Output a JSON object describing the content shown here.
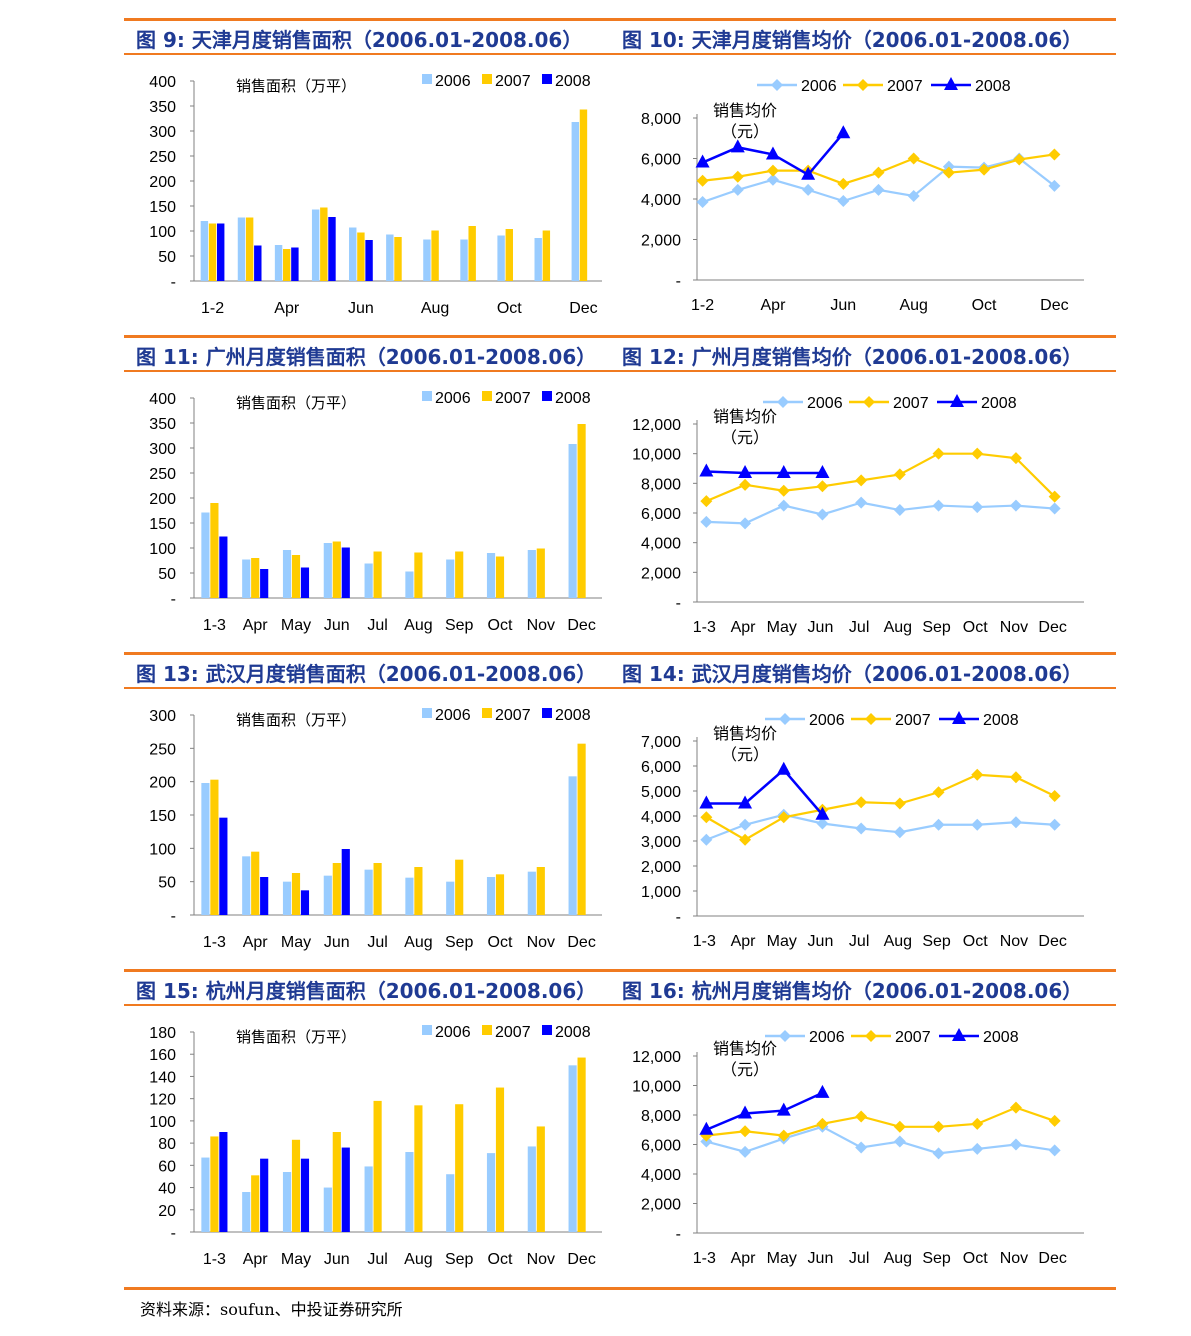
{
  "colors": {
    "y2006": "#99ccff",
    "y2007": "#ffcc00",
    "y2008": "#0000ff",
    "accent": "#f07a20",
    "title": "#1f3a93"
  },
  "sections": [
    {
      "left_title": "图  9:  天津月度销售面积（2006.01-2008.06）",
      "right_title": "图  10:  天津月度销售均价（2006.01-2008.06）"
    },
    {
      "left_title": "图  11:  广州月度销售面积（2006.01-2008.06）",
      "right_title": "图  12:  广州月度销售均价（2006.01-2008.06）"
    },
    {
      "left_title": "图  13:  武汉月度销售面积（2006.01-2008.06）",
      "right_title": "图  14:  武汉月度销售均价（2006.01-2008.06）"
    },
    {
      "left_title": "图  15:  杭州月度销售面积（2006.01-2008.06）",
      "right_title": "图  16:  杭州月度销售均价（2006.01-2008.06）"
    }
  ],
  "source": "资料来源：soufun、中投证券研究所",
  "chart_data": [
    {
      "id": "c9",
      "type": "bar",
      "title": "天津月度销售面积",
      "ylabel": "销售面积（万平）",
      "categories": [
        "1-2",
        "Mar",
        "Apr",
        "May",
        "Jun",
        "Jul",
        "Aug",
        "Sep",
        "Oct",
        "Nov",
        "Dec"
      ],
      "category_labels": [
        "1-2",
        "",
        "Apr",
        "",
        "Jun",
        "",
        "Aug",
        "",
        "Oct",
        "",
        "Dec"
      ],
      "ylim": [
        0,
        400
      ],
      "yticks": [
        {
          "v": 0,
          "t": "-"
        },
        {
          "v": 50,
          "t": "50"
        },
        {
          "v": 100,
          "t": "100"
        },
        {
          "v": 150,
          "t": "150"
        },
        {
          "v": 200,
          "t": "200"
        },
        {
          "v": 250,
          "t": "250"
        },
        {
          "v": 300,
          "t": "300"
        },
        {
          "v": 350,
          "t": "350"
        },
        {
          "v": 400,
          "t": "400"
        }
      ],
      "series": [
        {
          "name": "2006",
          "values": [
            120,
            127,
            72,
            143,
            107,
            93,
            83,
            83,
            91,
            86,
            318
          ]
        },
        {
          "name": "2007",
          "values": [
            115,
            127,
            64,
            147,
            97,
            88,
            101,
            110,
            104,
            101,
            343
          ]
        },
        {
          "name": "2008",
          "values": [
            115,
            71,
            67,
            128,
            82,
            null,
            null,
            null,
            null,
            null,
            null
          ]
        }
      ]
    },
    {
      "id": "c10",
      "type": "line",
      "title": "天津月度销售均价",
      "ylabel": "销售均价（元）",
      "categories": [
        "1-2",
        "Mar",
        "Apr",
        "May",
        "Jun",
        "Jul",
        "Aug",
        "Sep",
        "Oct",
        "Nov",
        "Dec"
      ],
      "category_labels": [
        "1-2",
        "",
        "Apr",
        "",
        "Jun",
        "",
        "Aug",
        "",
        "Oct",
        "",
        "Dec"
      ],
      "ylim": [
        0,
        8000
      ],
      "yticks": [
        {
          "v": 0,
          "t": "-"
        },
        {
          "v": 2000,
          "t": "2,000"
        },
        {
          "v": 4000,
          "t": "4,000"
        },
        {
          "v": 6000,
          "t": "6,000"
        },
        {
          "v": 8000,
          "t": "8,000"
        }
      ],
      "series": [
        {
          "name": "2006",
          "values": [
            3850,
            4450,
            4950,
            4450,
            3900,
            4450,
            4150,
            5600,
            5550,
            6000,
            4650
          ]
        },
        {
          "name": "2007",
          "values": [
            4900,
            5100,
            5400,
            5400,
            4750,
            5300,
            6000,
            5300,
            5450,
            5950,
            6200
          ]
        },
        {
          "name": "2008",
          "values": [
            5800,
            6550,
            6200,
            5200,
            7250,
            null,
            null,
            null,
            null,
            null,
            null
          ]
        }
      ]
    },
    {
      "id": "c11",
      "type": "bar",
      "title": "广州月度销售面积",
      "ylabel": "销售面积（万平）",
      "categories": [
        "1-3",
        "Apr",
        "May",
        "Jun",
        "Jul",
        "Aug",
        "Sep",
        "Oct",
        "Nov",
        "Dec"
      ],
      "category_labels": [
        "1-3",
        "Apr",
        "May",
        "Jun",
        "Jul",
        "Aug",
        "Sep",
        "Oct",
        "Nov",
        "Dec"
      ],
      "ylim": [
        0,
        400
      ],
      "yticks": [
        {
          "v": 0,
          "t": "-"
        },
        {
          "v": 50,
          "t": "50"
        },
        {
          "v": 100,
          "t": "100"
        },
        {
          "v": 150,
          "t": "150"
        },
        {
          "v": 200,
          "t": "200"
        },
        {
          "v": 250,
          "t": "250"
        },
        {
          "v": 300,
          "t": "300"
        },
        {
          "v": 350,
          "t": "350"
        },
        {
          "v": 400,
          "t": "400"
        }
      ],
      "series": [
        {
          "name": "2006",
          "values": [
            171,
            77,
            96,
            110,
            69,
            53,
            77,
            90,
            96,
            308
          ]
        },
        {
          "name": "2007",
          "values": [
            190,
            80,
            86,
            113,
            93,
            91,
            93,
            83,
            99,
            348
          ]
        },
        {
          "name": "2008",
          "values": [
            123,
            58,
            61,
            101,
            null,
            null,
            null,
            null,
            null,
            null
          ]
        }
      ]
    },
    {
      "id": "c12",
      "type": "line",
      "title": "广州月度销售均价",
      "ylabel": "销售均价（元）",
      "categories": [
        "1-3",
        "Apr",
        "May",
        "Jun",
        "Jul",
        "Aug",
        "Sep",
        "Oct",
        "Nov",
        "Dec"
      ],
      "category_labels": [
        "1-3",
        "Apr",
        "May",
        "Jun",
        "Jul",
        "Aug",
        "Sep",
        "Oct",
        "Nov",
        "Dec"
      ],
      "ylim": [
        0,
        12000
      ],
      "yticks": [
        {
          "v": 0,
          "t": "-"
        },
        {
          "v": 2000,
          "t": "2,000"
        },
        {
          "v": 4000,
          "t": "4,000"
        },
        {
          "v": 6000,
          "t": "6,000"
        },
        {
          "v": 8000,
          "t": "8,000"
        },
        {
          "v": 10000,
          "t": "10,000"
        },
        {
          "v": 12000,
          "t": "12,000"
        }
      ],
      "series": [
        {
          "name": "2006",
          "values": [
            5400,
            5300,
            6500,
            5900,
            6700,
            6200,
            6500,
            6400,
            6500,
            6300
          ]
        },
        {
          "name": "2007",
          "values": [
            6800,
            7900,
            7500,
            7800,
            8200,
            8600,
            10000,
            10000,
            9700,
            7100
          ]
        },
        {
          "name": "2008",
          "values": [
            8800,
            8700,
            8700,
            8700,
            null,
            null,
            null,
            null,
            null,
            null
          ]
        }
      ]
    },
    {
      "id": "c13",
      "type": "bar",
      "title": "武汉月度销售面积",
      "ylabel": "销售面积（万平）",
      "categories": [
        "1-3",
        "Apr",
        "May",
        "Jun",
        "Jul",
        "Aug",
        "Sep",
        "Oct",
        "Nov",
        "Dec"
      ],
      "category_labels": [
        "1-3",
        "Apr",
        "May",
        "Jun",
        "Jul",
        "Aug",
        "Sep",
        "Oct",
        "Nov",
        "Dec"
      ],
      "ylim": [
        0,
        300
      ],
      "yticks": [
        {
          "v": 0,
          "t": "-"
        },
        {
          "v": 50,
          "t": "50"
        },
        {
          "v": 100,
          "t": "100"
        },
        {
          "v": 150,
          "t": "150"
        },
        {
          "v": 200,
          "t": "200"
        },
        {
          "v": 250,
          "t": "250"
        },
        {
          "v": 300,
          "t": "300"
        }
      ],
      "series": [
        {
          "name": "2006",
          "values": [
            198,
            88,
            50,
            59,
            68,
            56,
            50,
            57,
            65,
            208
          ]
        },
        {
          "name": "2007",
          "values": [
            203,
            95,
            63,
            78,
            78,
            72,
            83,
            61,
            72,
            257
          ]
        },
        {
          "name": "2008",
          "values": [
            146,
            57,
            37,
            99,
            null,
            null,
            null,
            null,
            null,
            null
          ]
        }
      ]
    },
    {
      "id": "c14",
      "type": "line",
      "title": "武汉月度销售均价",
      "ylabel": "销售均价（元）",
      "categories": [
        "1-3",
        "Apr",
        "May",
        "Jun",
        "Jul",
        "Aug",
        "Sep",
        "Oct",
        "Nov",
        "Dec"
      ],
      "category_labels": [
        "1-3",
        "Apr",
        "May",
        "Jun",
        "Jul",
        "Aug",
        "Sep",
        "Oct",
        "Nov",
        "Dec"
      ],
      "ylim": [
        0,
        7000
      ],
      "yticks": [
        {
          "v": 0,
          "t": "-"
        },
        {
          "v": 1000,
          "t": "1,000"
        },
        {
          "v": 2000,
          "t": "2,000"
        },
        {
          "v": 3000,
          "t": "3,000"
        },
        {
          "v": 4000,
          "t": "4,000"
        },
        {
          "v": 5000,
          "t": "5,000"
        },
        {
          "v": 6000,
          "t": "6,000"
        },
        {
          "v": 7000,
          "t": "7,000"
        }
      ],
      "series": [
        {
          "name": "2006",
          "values": [
            3050,
            3650,
            4050,
            3700,
            3500,
            3350,
            3650,
            3650,
            3750,
            3650
          ]
        },
        {
          "name": "2007",
          "values": [
            3950,
            3050,
            3950,
            4250,
            4550,
            4500,
            4950,
            5650,
            5550,
            4800
          ]
        },
        {
          "name": "2008",
          "values": [
            4500,
            4500,
            5850,
            4050,
            null,
            null,
            null,
            null,
            null,
            null
          ]
        }
      ]
    },
    {
      "id": "c15",
      "type": "bar",
      "title": "杭州月度销售面积",
      "ylabel": "销售面积（万平）",
      "categories": [
        "1-3",
        "Apr",
        "May",
        "Jun",
        "Jul",
        "Aug",
        "Sep",
        "Oct",
        "Nov",
        "Dec"
      ],
      "category_labels": [
        "1-3",
        "Apr",
        "May",
        "Jun",
        "Jul",
        "Aug",
        "Sep",
        "Oct",
        "Nov",
        "Dec"
      ],
      "ylim": [
        0,
        180
      ],
      "yticks": [
        {
          "v": 0,
          "t": "-"
        },
        {
          "v": 20,
          "t": "20"
        },
        {
          "v": 40,
          "t": "40"
        },
        {
          "v": 60,
          "t": "60"
        },
        {
          "v": 80,
          "t": "80"
        },
        {
          "v": 100,
          "t": "100"
        },
        {
          "v": 120,
          "t": "120"
        },
        {
          "v": 140,
          "t": "140"
        },
        {
          "v": 160,
          "t": "160"
        },
        {
          "v": 180,
          "t": "180"
        }
      ],
      "series": [
        {
          "name": "2006",
          "values": [
            67,
            36,
            54,
            40,
            59,
            72,
            52,
            71,
            77,
            150
          ]
        },
        {
          "name": "2007",
          "values": [
            86,
            51,
            83,
            90,
            118,
            114,
            115,
            130,
            95,
            157
          ]
        },
        {
          "name": "2008",
          "values": [
            90,
            66,
            66,
            76,
            null,
            null,
            null,
            null,
            null,
            null
          ]
        }
      ]
    },
    {
      "id": "c16",
      "type": "line",
      "title": "杭州月度销售均价",
      "ylabel": "销售均价（元）",
      "categories": [
        "1-3",
        "Apr",
        "May",
        "Jun",
        "Jul",
        "Aug",
        "Sep",
        "Oct",
        "Nov",
        "Dec"
      ],
      "category_labels": [
        "1-3",
        "Apr",
        "May",
        "Jun",
        "Jul",
        "Aug",
        "Sep",
        "Oct",
        "Nov",
        "Dec"
      ],
      "ylim": [
        0,
        12000
      ],
      "yticks": [
        {
          "v": 0,
          "t": "-"
        },
        {
          "v": 2000,
          "t": "2,000"
        },
        {
          "v": 4000,
          "t": "4,000"
        },
        {
          "v": 6000,
          "t": "6,000"
        },
        {
          "v": 8000,
          "t": "8,000"
        },
        {
          "v": 10000,
          "t": "10,000"
        },
        {
          "v": 12000,
          "t": "12,000"
        }
      ],
      "series": [
        {
          "name": "2006",
          "values": [
            6200,
            5500,
            6400,
            7200,
            5800,
            6200,
            5400,
            5700,
            6000,
            5600
          ]
        },
        {
          "name": "2007",
          "values": [
            6600,
            6900,
            6600,
            7400,
            7900,
            7200,
            7200,
            7400,
            8500,
            7600
          ]
        },
        {
          "name": "2008",
          "values": [
            7000,
            8100,
            8300,
            9500,
            null,
            null,
            null,
            null,
            null,
            null
          ]
        }
      ]
    }
  ]
}
